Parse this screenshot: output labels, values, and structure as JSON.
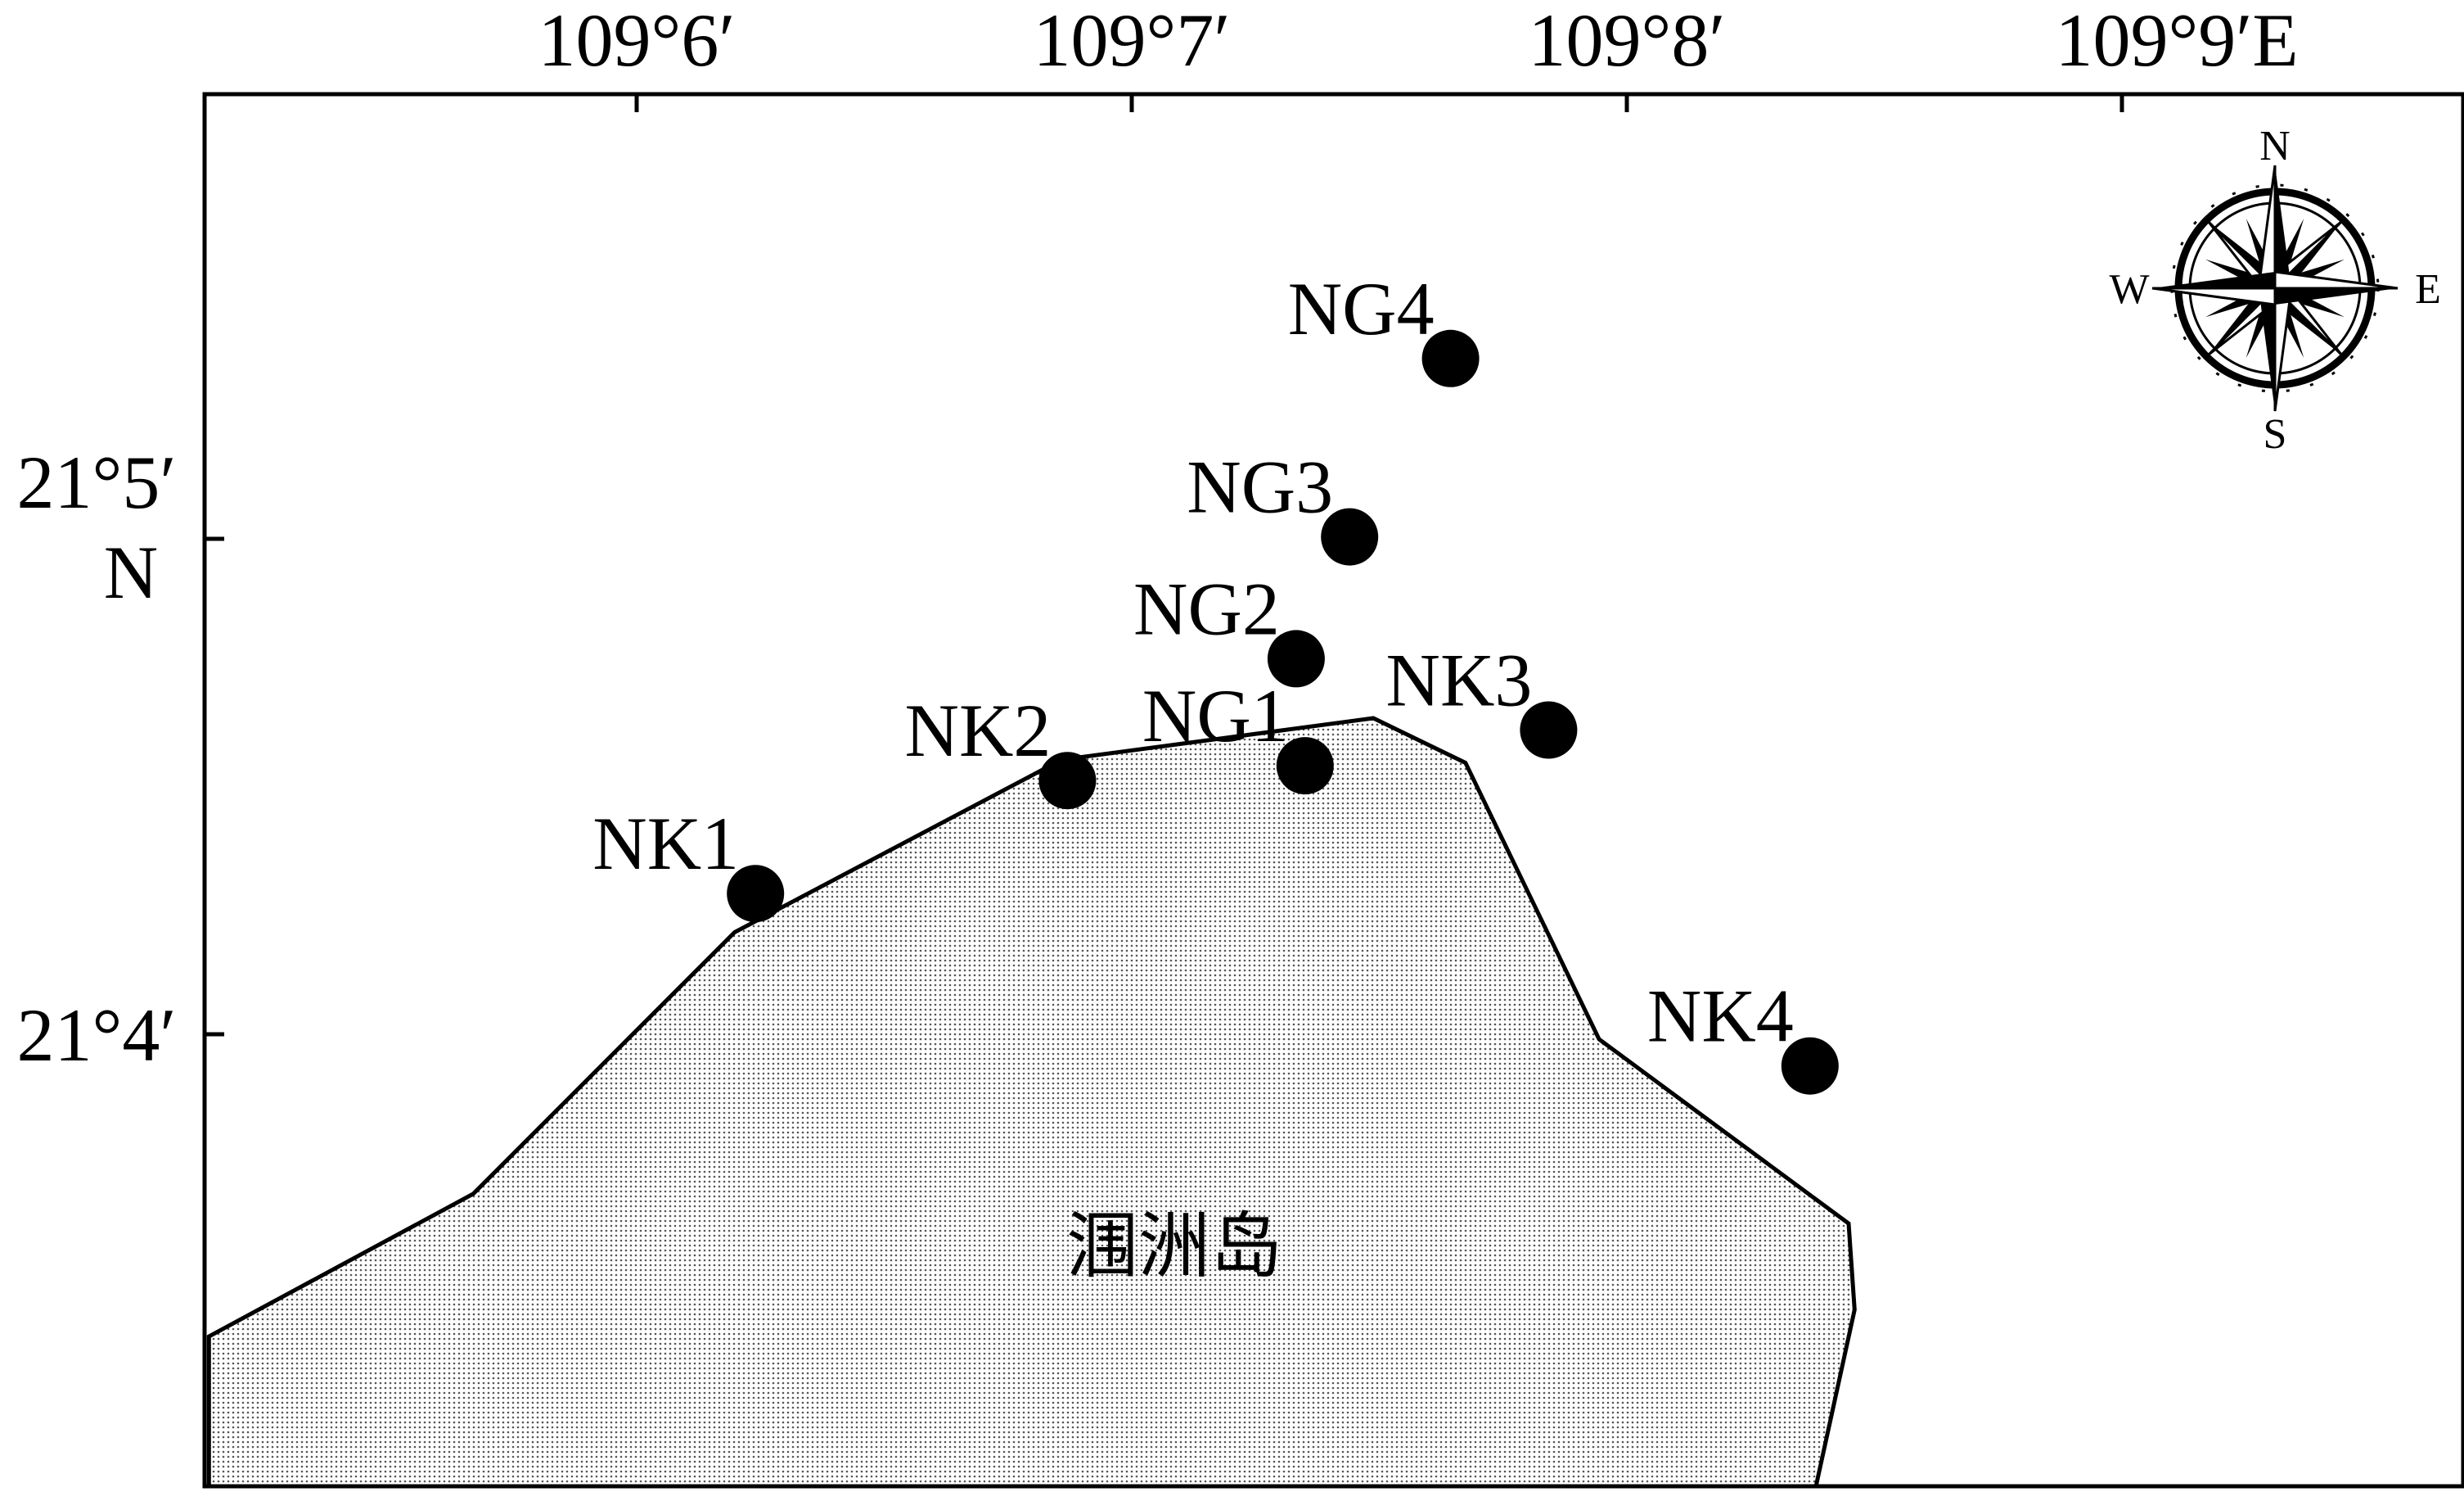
{
  "map": {
    "lon_ticks": [
      {
        "value": 109.1,
        "label": "109°6′"
      },
      {
        "value": 109.116667,
        "label": "109°7′"
      },
      {
        "value": 109.133333,
        "label": "109°8′"
      },
      {
        "value": 109.15,
        "label": "109°9′E"
      }
    ],
    "lat_ticks": [
      {
        "value": 21.083333,
        "label": "21°5′",
        "label2": "N"
      },
      {
        "value": 21.066667,
        "label": "21°4′",
        "label2": ""
      }
    ],
    "sites": [
      {
        "id": "NK1",
        "label": "NK1",
        "lon": 109.104,
        "lat": 21.0714
      },
      {
        "id": "NK2",
        "label": "NK2",
        "lon": 109.1145,
        "lat": 21.0752
      },
      {
        "id": "NG1",
        "label": "NG1",
        "lon": 109.1225,
        "lat": 21.0757
      },
      {
        "id": "NG2",
        "label": "NG2",
        "lon": 109.1222,
        "lat": 21.0793
      },
      {
        "id": "NG3",
        "label": "NG3",
        "lon": 109.124,
        "lat": 21.0834
      },
      {
        "id": "NG4",
        "label": "NG4",
        "lon": 109.1274,
        "lat": 21.0894
      },
      {
        "id": "NK3",
        "label": "NK3",
        "lon": 109.1307,
        "lat": 21.0769
      },
      {
        "id": "NK4",
        "label": "NK4",
        "lon": 109.1395,
        "lat": 21.0656
      }
    ],
    "island": {
      "name": "涠洲岛",
      "outline": [
        [
          109.0856,
          21.0565
        ],
        [
          109.0945,
          21.0613
        ],
        [
          109.1033,
          21.0701
        ],
        [
          109.1143,
          21.0759
        ],
        [
          109.1248,
          21.0773
        ],
        [
          109.1279,
          21.0758
        ],
        [
          109.1324,
          21.0665
        ],
        [
          109.1408,
          21.0603
        ],
        [
          109.141,
          21.0574
        ],
        [
          109.1397,
          21.0511
        ],
        [
          109.0856,
          21.0511
        ]
      ]
    },
    "compass": {
      "north": "N",
      "south": "S",
      "east": "E",
      "west": "W"
    },
    "colors": {
      "frame": "#000000",
      "island_fill": "#e6e6e6",
      "site_marker": "#000000"
    }
  }
}
